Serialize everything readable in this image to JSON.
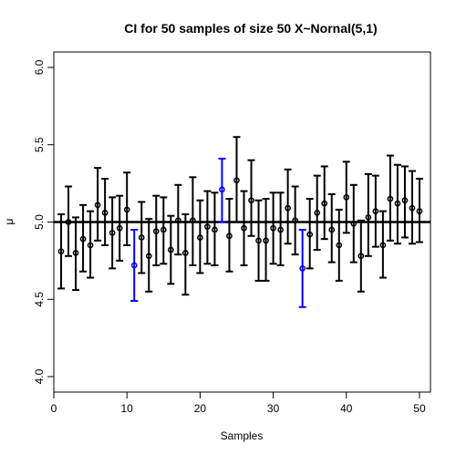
{
  "chart_data": {
    "type": "scatter",
    "title": "CI for 50 samples of size 50  X~Nornal(5,1)",
    "xlabel": "Samples",
    "ylabel": "μ",
    "xlim": [
      0,
      51.5
    ],
    "ylim": [
      3.9,
      6.1
    ],
    "x_ticks": [
      0,
      10,
      20,
      30,
      40,
      50
    ],
    "y_ticks": [
      4.0,
      4.5,
      5.0,
      5.5,
      6.0
    ],
    "reference_line": 5.0,
    "grid": false,
    "legend": "none",
    "colors": {
      "covers": "#000000",
      "misses": "#0000ff",
      "reference": "#000000"
    },
    "x": [
      1,
      2,
      3,
      4,
      5,
      6,
      7,
      8,
      9,
      10,
      11,
      12,
      13,
      14,
      15,
      16,
      17,
      18,
      19,
      20,
      21,
      22,
      23,
      24,
      25,
      26,
      27,
      28,
      29,
      30,
      31,
      32,
      33,
      34,
      35,
      36,
      37,
      38,
      39,
      40,
      41,
      42,
      43,
      44,
      45,
      46,
      47,
      48,
      49,
      50
    ],
    "mean": [
      4.81,
      5.0,
      4.8,
      4.89,
      4.85,
      5.11,
      5.06,
      4.93,
      4.96,
      5.08,
      4.72,
      4.9,
      4.78,
      4.94,
      4.95,
      4.82,
      5.01,
      4.8,
      5.01,
      4.9,
      4.97,
      4.95,
      5.21,
      4.91,
      5.27,
      4.96,
      5.14,
      4.88,
      4.88,
      4.96,
      4.95,
      5.09,
      5.01,
      4.7,
      4.92,
      5.06,
      5.12,
      4.95,
      4.85,
      5.16,
      4.99,
      4.78,
      5.03,
      5.07,
      4.85,
      5.15,
      5.12,
      5.14,
      5.09,
      5.07
    ],
    "lower": [
      4.57,
      4.78,
      4.56,
      4.68,
      4.64,
      4.88,
      4.85,
      4.7,
      4.75,
      4.85,
      4.49,
      4.67,
      4.55,
      4.72,
      4.73,
      4.6,
      4.79,
      4.53,
      4.72,
      4.67,
      4.73,
      4.72,
      5.0,
      4.68,
      5.0,
      4.72,
      4.91,
      4.62,
      4.62,
      4.73,
      4.72,
      4.86,
      4.79,
      4.45,
      4.7,
      4.82,
      4.89,
      4.74,
      4.62,
      4.93,
      4.74,
      4.55,
      4.78,
      4.84,
      4.64,
      4.88,
      4.86,
      4.9,
      4.86,
      4.87
    ],
    "upper": [
      5.05,
      5.23,
      5.03,
      5.11,
      5.07,
      5.35,
      5.28,
      5.16,
      5.17,
      5.32,
      4.95,
      5.13,
      5.02,
      5.17,
      5.16,
      5.04,
      5.24,
      5.05,
      5.29,
      5.14,
      5.2,
      5.19,
      5.41,
      5.15,
      5.55,
      5.2,
      5.4,
      5.14,
      5.15,
      5.19,
      5.19,
      5.34,
      5.23,
      4.95,
      5.15,
      5.3,
      5.36,
      5.18,
      5.08,
      5.39,
      5.24,
      5.01,
      5.31,
      5.3,
      5.07,
      5.43,
      5.37,
      5.36,
      5.33,
      5.28
    ],
    "missed_samples": [
      11,
      23,
      34
    ]
  }
}
